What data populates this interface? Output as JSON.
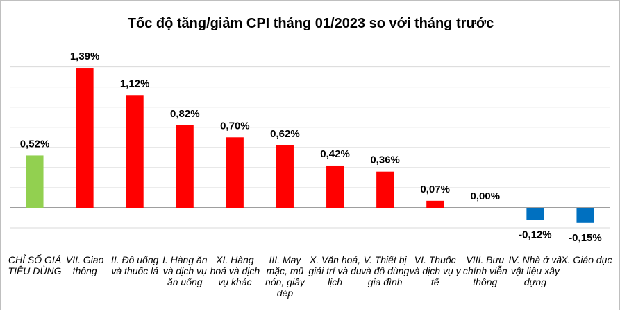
{
  "chart_data": {
    "type": "bar",
    "title": "Tốc độ tăng/giảm CPI tháng 01/2023 so với tháng trước",
    "xlabel": "",
    "ylabel": "",
    "grid": true,
    "legend": "none",
    "ylim": [
      -0.3,
      1.5
    ],
    "categories": [
      "CHỈ SỐ GIÁ TIÊU DÙNG",
      "VII. Giao thông",
      "II. Đồ uống và thuốc lá",
      "I. Hàng ăn và dịch vụ ăn uống",
      "XI. Hàng hoá và dịch vụ khác",
      "III. May mặc, mũ nón, giầy dép",
      "X. Văn hoá, giải trí và du lịch",
      "V. Thiết bị và đồ dùng gia đình",
      "VI. Thuốc và dịch vụ y tế",
      "VIII. Bưu chính viễn thông",
      "IV. Nhà ở và vật liệu xây dựng",
      "IX. Giáo dục"
    ],
    "values": [
      0.52,
      1.39,
      1.12,
      0.82,
      0.7,
      0.62,
      0.42,
      0.36,
      0.07,
      0.0,
      -0.12,
      -0.15
    ],
    "value_labels": [
      "0,52%",
      "1,39%",
      "1,12%",
      "0,82%",
      "0,70%",
      "0,62%",
      "0,42%",
      "0,36%",
      "0,07%",
      "0,00%",
      "-0,12%",
      "-0,15%"
    ],
    "colors": {
      "headline": "#92d050",
      "positive": "#ff0000",
      "negative": "#0070c0",
      "grid": "#d9d9d9",
      "axis": "#7f7f7f"
    }
  }
}
